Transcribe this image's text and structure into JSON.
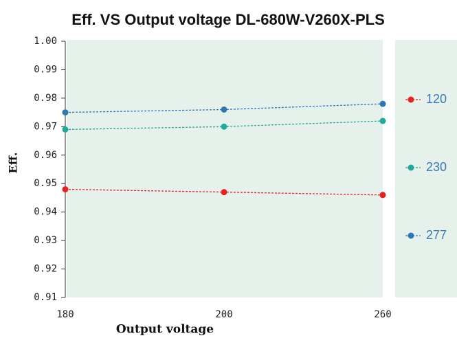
{
  "chart_data": {
    "type": "line",
    "title": "Eff. VS Output voltage DL-680W-V260X-PLS",
    "x_label": "Output voltage",
    "y_label": "Eff.",
    "categories": [
      "180",
      "200",
      "260"
    ],
    "series": [
      {
        "name": "120",
        "color": "#e8201f",
        "values": [
          0.948,
          0.947,
          0.946
        ]
      },
      {
        "name": "230",
        "color": "#21a99a",
        "values": [
          0.969,
          0.97,
          0.972
        ]
      },
      {
        "name": "277",
        "color": "#2f76b6",
        "values": [
          0.975,
          0.976,
          0.978
        ]
      }
    ],
    "ylim": [
      0.91,
      1
    ],
    "yticks": [
      0.91,
      0.92,
      0.93,
      0.94,
      0.95,
      0.96,
      0.97,
      0.98,
      0.99,
      {
        "value": 1,
        "label": "1.00"
      }
    ],
    "legend": "right"
  }
}
